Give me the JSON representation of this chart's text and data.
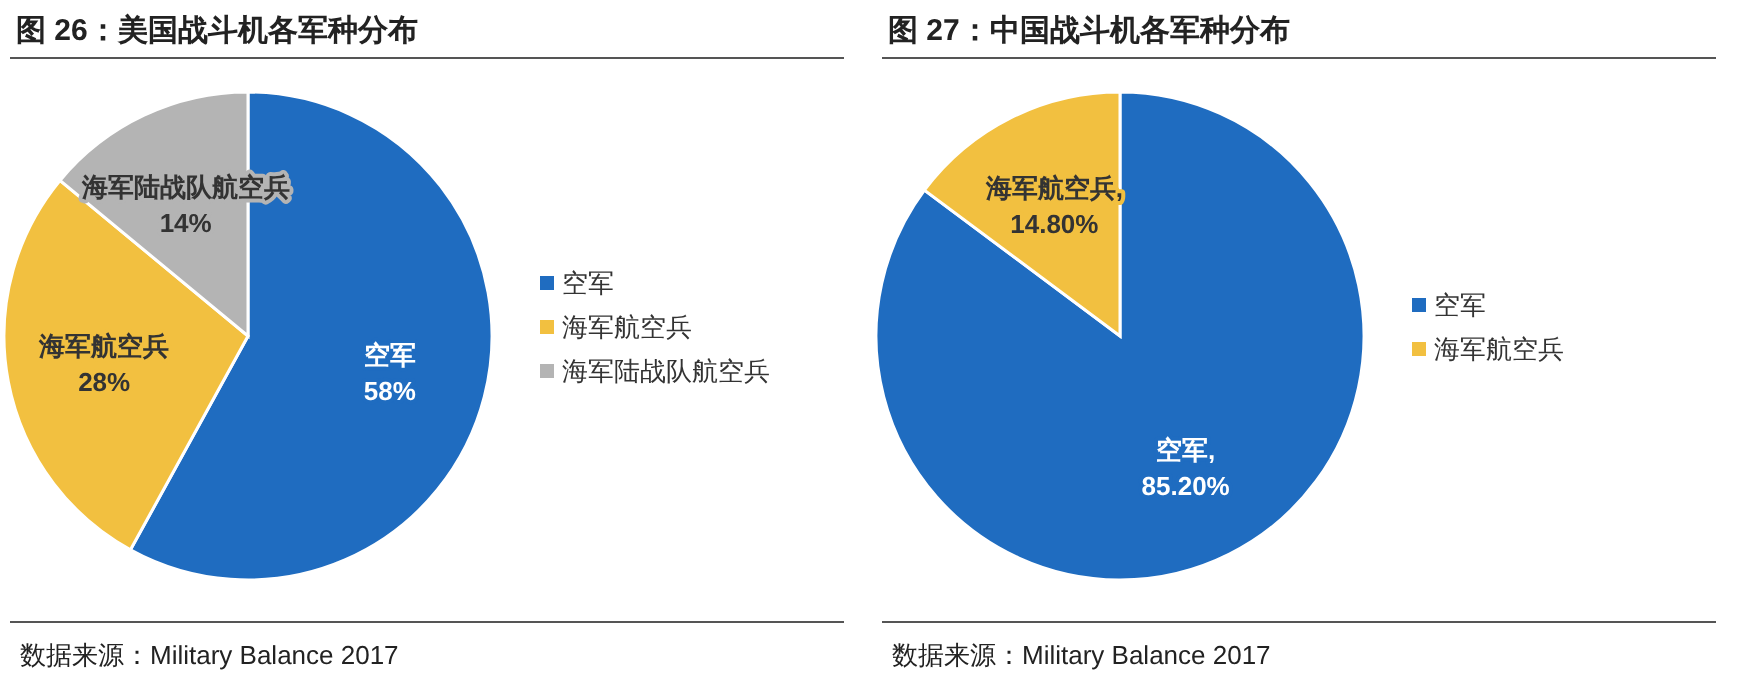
{
  "chart_data": [
    {
      "type": "pie",
      "title": "图 26：美国战斗机各军种分布",
      "categories": [
        "空军",
        "海军航空兵",
        "海军陆战队航空兵"
      ],
      "values": [
        58,
        28,
        14
      ],
      "colors": [
        "#1f6cc0",
        "#f2c040",
        "#b4b4b4"
      ],
      "value_labels": [
        "空军\n58%",
        "海军航空兵\n28%",
        "海军陆战队航空兵\n14%"
      ],
      "legend": "right",
      "annotations": [
        "数据来源：Military Balance 2017"
      ]
    },
    {
      "type": "pie",
      "title": "图 27：中国战斗机各军种分布",
      "categories": [
        "空军",
        "海军航空兵"
      ],
      "values": [
        85.2,
        14.8
      ],
      "colors": [
        "#1f6cc0",
        "#f2c040"
      ],
      "value_labels": [
        "空军,\n85.20%",
        "海军航空兵,\n14.80%"
      ],
      "legend": "right",
      "annotations": [
        "数据来源：Military Balance 2017"
      ]
    }
  ]
}
